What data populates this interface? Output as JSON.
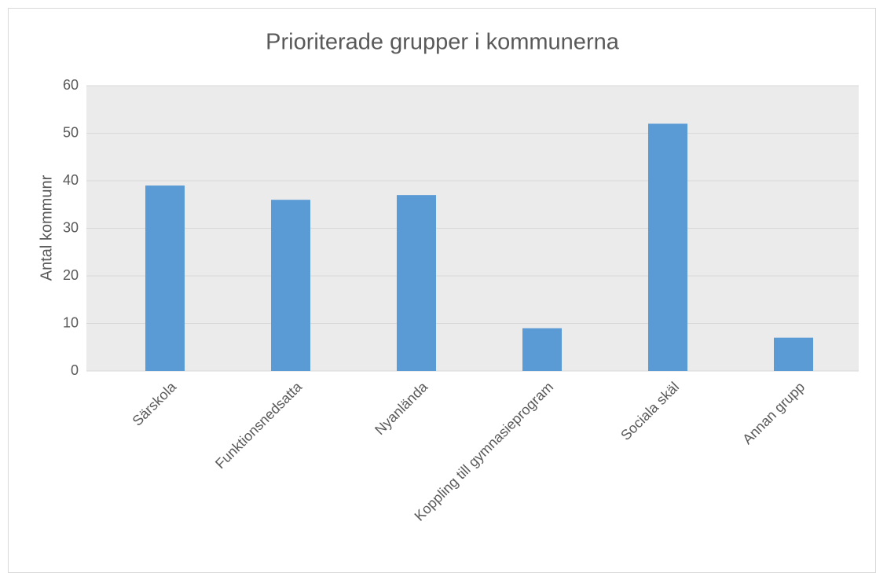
{
  "chart_data": {
    "type": "bar",
    "title": "Prioriterade grupper i kommunerna",
    "y_label": "Antal kommunr",
    "categories": [
      "Särskola",
      "Funktionsnedsatta",
      "Nyanlända",
      "Koppling till gymnasieprogram",
      "Sociala skäl",
      "Annan grupp"
    ],
    "values": [
      39,
      36,
      37,
      9,
      52,
      7
    ],
    "color": "#5b9bd5",
    "ylim": [
      0,
      60
    ],
    "yticks": [
      0,
      10,
      20,
      30,
      40,
      50,
      60
    ],
    "grid": true
  }
}
